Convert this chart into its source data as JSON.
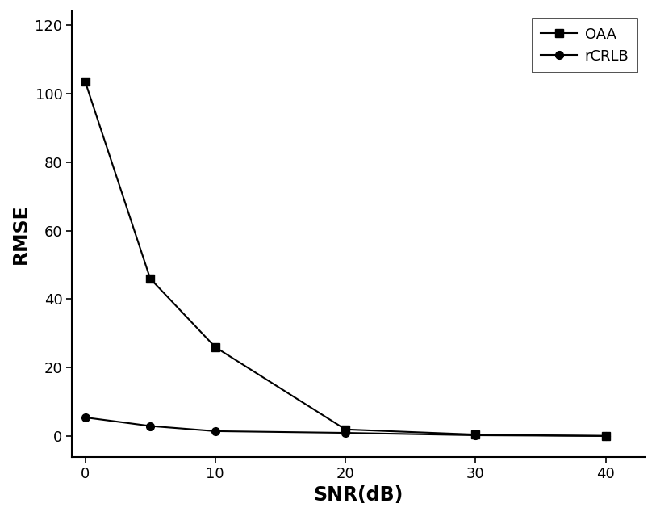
{
  "OAA_x": [
    0,
    5,
    10,
    20,
    30,
    40
  ],
  "OAA_y": [
    103.5,
    46.0,
    26.0,
    2.0,
    0.5,
    0.1
  ],
  "rCRLB_x": [
    0,
    5,
    10,
    20,
    30,
    40
  ],
  "rCRLB_y": [
    5.5,
    3.0,
    1.5,
    1.0,
    0.3,
    0.1
  ],
  "xlabel": "SNR(dB)",
  "ylabel": "RMSE",
  "xlim": [
    -1,
    43
  ],
  "ylim": [
    -6,
    124
  ],
  "yticks": [
    0,
    20,
    40,
    60,
    80,
    100,
    120
  ],
  "xticks": [
    0,
    10,
    20,
    30,
    40
  ],
  "legend_OAA": "OAA",
  "legend_rCRLB": "rCRLB",
  "line_color": "#000000",
  "bg_color": "#ffffff",
  "marker_OAA": "s",
  "marker_rCRLB": "o",
  "marker_size": 7,
  "line_width": 1.5,
  "xlabel_fontsize": 17,
  "ylabel_fontsize": 17,
  "tick_fontsize": 13,
  "legend_fontsize": 13
}
